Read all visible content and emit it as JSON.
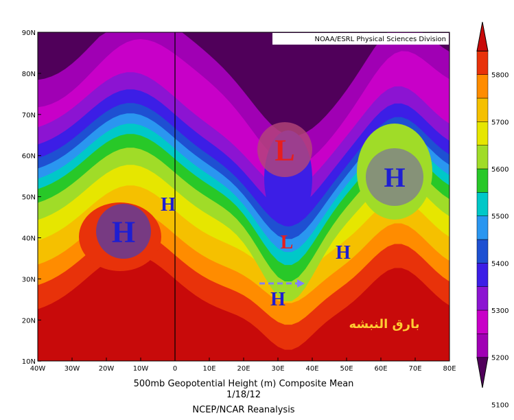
{
  "header": {
    "source": "NOAA/ESRL Physical Sciences Division"
  },
  "map": {
    "lat_labels": [
      "90N",
      "80N",
      "70N",
      "60N",
      "50N",
      "40N",
      "30N",
      "20N",
      "10N"
    ],
    "lon_labels": [
      "40W",
      "30W",
      "20W",
      "10W",
      "0",
      "10E",
      "20E",
      "30E",
      "40E",
      "50E",
      "60E",
      "70E",
      "80E"
    ],
    "markers": [
      {
        "label": "H"
      },
      {
        "label": "L"
      },
      {
        "label": "H"
      },
      {
        "label": "H"
      },
      {
        "label": "L"
      },
      {
        "label": "H"
      },
      {
        "label": "H"
      }
    ],
    "watermark": "بارق النبشه"
  },
  "colorbar": {
    "levels": [
      "5800",
      "5700",
      "5600",
      "5500",
      "5400",
      "5300",
      "5200",
      "5100"
    ]
  },
  "footer": {
    "title": "500mb Geopotential Height (m) Composite Mean",
    "date": "1/18/12",
    "source": "NCEP/NCAR Reanalysis"
  }
}
